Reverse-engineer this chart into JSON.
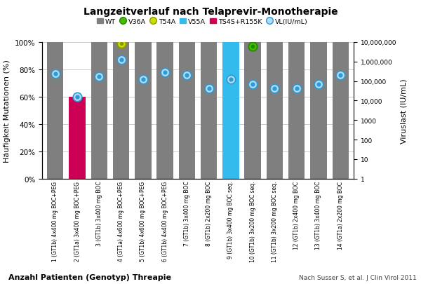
{
  "title": "Langzeitverlauf nach Telaprevir-Monotherapie",
  "ylabel_left": "Häufigkeit Mutationen (%)",
  "ylabel_right": "Viruslast (IU/mL)",
  "xlabel": "Anzahl Patienten (Genotyp) Threapie",
  "citation": "Nach Susser S, et al. J Clin Virol 2011",
  "categories": [
    "1 (GT1b) 4x400 mg BOC+PEG",
    "2 (GT1a) 3x400 mg BOC+PEG",
    "3 (GT1b) 3x400 mg BOC",
    "4 (GT1a) 4x600 mg BOC+PEG",
    "5 (GT1b) 4x600 mg BOC+PEG",
    "6 (GT1b) 4x400 mg BOC+PEG",
    "7 (GT1b) 3x400 mg BOC",
    "8 (GT1b) 2x200 mg BOC",
    "9 (GT1b) 3x400 mg BOC seq.",
    "10 (GT1b) 3x200 mg BOC seq.",
    "11 (GT1b) 3x200 mg BOC seq.",
    "12 (GT1b) 2x400 mg BOC",
    "13 (GT1b) 3x400 mg BOC",
    "14 (GT1a) 2x200 mg BOC"
  ],
  "wt_values": [
    100,
    60,
    100,
    100,
    100,
    100,
    100,
    100,
    100,
    100,
    100,
    100,
    100,
    100
  ],
  "bar_colors": [
    "#7f7f7f",
    "#cc0055",
    "#7f7f7f",
    "#7f7f7f",
    "#7f7f7f",
    "#7f7f7f",
    "#7f7f7f",
    "#7f7f7f",
    "#33bbee",
    "#7f7f7f",
    "#7f7f7f",
    "#7f7f7f",
    "#7f7f7f",
    "#7f7f7f"
  ],
  "vl_pct": [
    77,
    60,
    75,
    87,
    73,
    78,
    76,
    66,
    73,
    69,
    66,
    66,
    69,
    76
  ],
  "t54a_bar": 3,
  "t54a_pct": 99,
  "v36a_bar": 9,
  "v36a_pct": 97,
  "wt_color": "#7f7f7f",
  "v36a_color": "#44bb00",
  "v36a_edge": "#228800",
  "t54a_face": "#ccdd00",
  "t54a_edge": "#889900",
  "v55a_color": "#33bbee",
  "ts4s_color": "#cc0055",
  "vl_face": "#aaddff",
  "vl_edge": "#3399cc",
  "grid_color": "#cccccc",
  "bg_color": "#ffffff"
}
